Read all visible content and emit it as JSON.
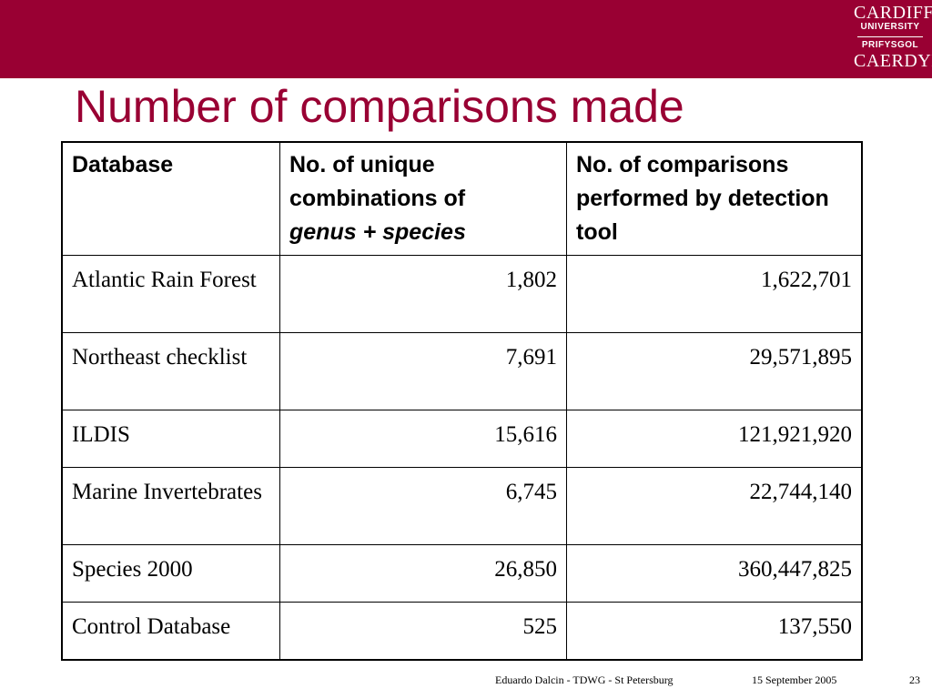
{
  "header": {
    "logo": {
      "line1": "CARDIFF",
      "line2": "UNIVERSITY",
      "line3": "PRIFYSGOL",
      "line4": "CAERDYD"
    }
  },
  "slide": {
    "title": "Number of comparisons made"
  },
  "table": {
    "headers": {
      "col1": "Database",
      "col2_main": "No. of unique combinations of",
      "col2_italic": "genus + species",
      "col3": "No. of comparisons performed by detection tool"
    },
    "rows": [
      {
        "database": "Atlantic Rain Forest",
        "unique": "1,802",
        "comparisons": "1,622,701"
      },
      {
        "database": "Northeast checklist",
        "unique": "7,691",
        "comparisons": "29,571,895"
      },
      {
        "database": "ILDIS",
        "unique": "15,616",
        "comparisons": "121,921,920"
      },
      {
        "database": "Marine Invertebrates",
        "unique": "6,745",
        "comparisons": "22,744,140"
      },
      {
        "database": "Species 2000",
        "unique": "26,850",
        "comparisons": "360,447,825"
      },
      {
        "database": "Control Database",
        "unique": "525",
        "comparisons": "137,550"
      }
    ]
  },
  "footer": {
    "author": "Eduardo Dalcin - TDWG - St Petersburg",
    "date": "15 September 2005",
    "page": "23"
  },
  "colors": {
    "brand": "#990033",
    "background": "#ffffff",
    "text": "#000000"
  }
}
